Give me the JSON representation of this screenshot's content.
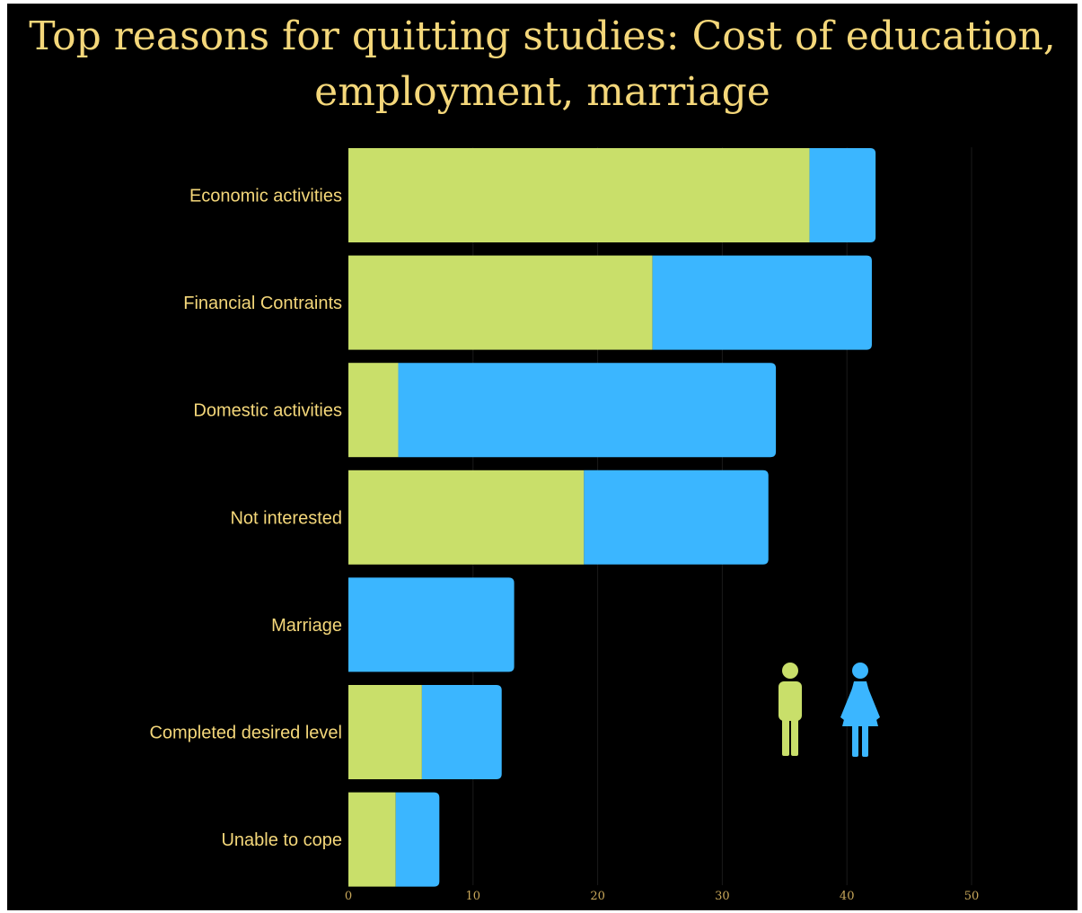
{
  "chart_data": {
    "type": "bar",
    "orientation": "horizontal",
    "stacked": true,
    "title": "Top reasons for quitting studies: Cost of education, employment, marriage",
    "categories": [
      "Economic activities",
      "Financial Contraints",
      "Domestic activities",
      "Not interested",
      "Marriage",
      "Completed desired level",
      "Unable to cope"
    ],
    "series": [
      {
        "values": [
          37.0,
          24.4,
          4.0,
          18.9,
          0.0,
          5.9,
          3.8
        ],
        "color": "#c9df6a",
        "icon": "male-icon"
      },
      {
        "values": [
          5.3,
          17.6,
          30.3,
          14.8,
          13.3,
          6.4,
          3.5
        ],
        "color": "#3bb6ff",
        "icon": "female-icon"
      }
    ],
    "xlim": [
      0,
      50
    ],
    "xticks": [
      0,
      10,
      20,
      30,
      40,
      50
    ],
    "grid": false,
    "legend": "right, male and female pictograms",
    "background": "#000000"
  }
}
